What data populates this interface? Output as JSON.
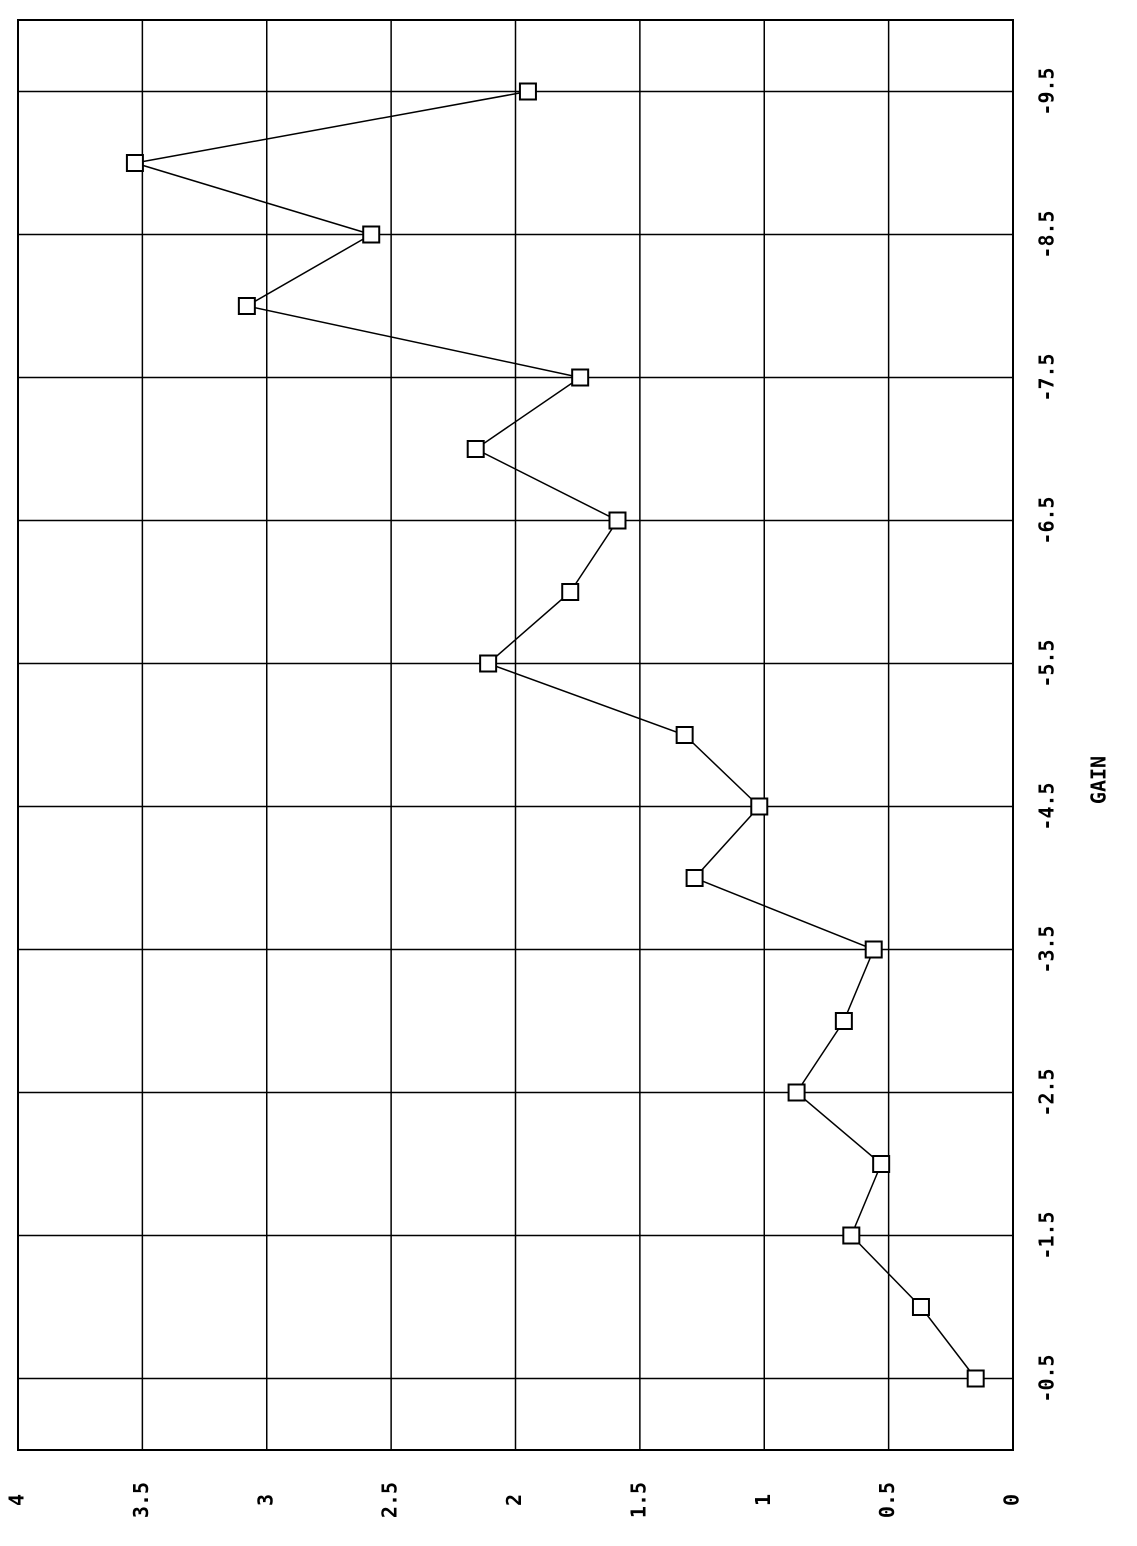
{
  "chart_data": {
    "type": "line",
    "x_label": "GAIN",
    "x": [
      -0.5,
      -1,
      -1.5,
      -2,
      -2.5,
      -3,
      -3.5,
      -4,
      -4.5,
      -5,
      -5.5,
      -6,
      -6.5,
      -7,
      -7.5,
      -8,
      -8.5,
      -9,
      -9.5
    ],
    "values": [
      0.15,
      0.37,
      0.65,
      0.53,
      0.87,
      0.68,
      0.56,
      1.28,
      1.02,
      1.32,
      2.11,
      1.78,
      1.59,
      2.16,
      1.74,
      3.08,
      2.58,
      3.53,
      1.95
    ],
    "color": "#000000",
    "xlim": [
      0,
      -10
    ],
    "xticks": [
      -0.5,
      -1.5,
      -2.5,
      -3.5,
      -4.5,
      -5.5,
      -6.5,
      -7.5,
      -8.5,
      -9.5
    ],
    "ylim": [
      0,
      4
    ],
    "yticks": [
      0,
      0.5,
      1,
      1.5,
      2,
      2.5,
      3,
      3.5,
      4
    ],
    "grid": true,
    "markers": "square"
  }
}
